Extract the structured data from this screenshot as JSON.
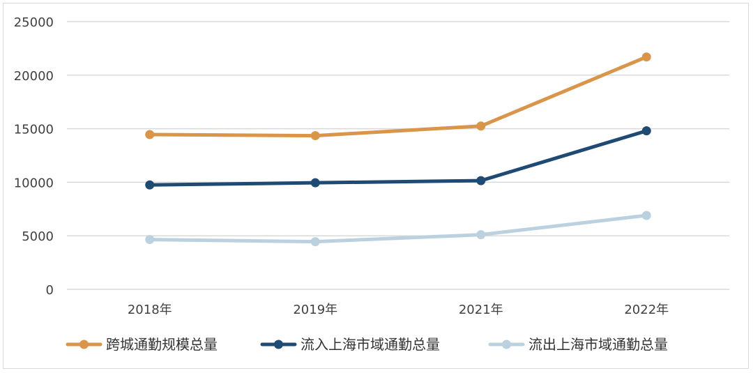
{
  "chart_data": {
    "type": "line",
    "title": "",
    "xlabel": "",
    "ylabel": "",
    "categories": [
      "2018年",
      "2019年",
      "2021年",
      "2022年"
    ],
    "ylim": [
      0,
      25000
    ],
    "yticks": [
      "0",
      "5000",
      "10000",
      "15000",
      "20000",
      "25000"
    ],
    "grid": true,
    "legend_position": "bottom",
    "series": [
      {
        "name": "跨城通勤规模总量",
        "color": "#D9954A",
        "values": [
          14450,
          14350,
          15250,
          21700
        ]
      },
      {
        "name": "流入上海市域通勤总量",
        "color": "#1F4A73",
        "values": [
          9750,
          9950,
          10150,
          14800
        ]
      },
      {
        "name": "流出上海市域通勤总量",
        "color": "#BCD1E0",
        "values": [
          4650,
          4450,
          5100,
          6900
        ]
      }
    ]
  }
}
